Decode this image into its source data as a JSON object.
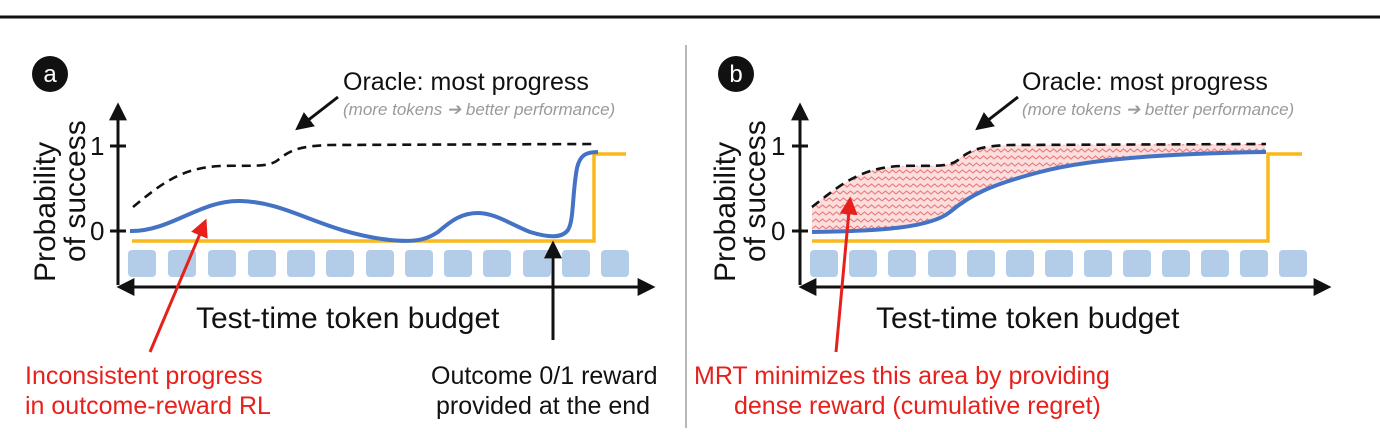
{
  "panel_a": {
    "badge": "a",
    "oracle_title": "Oracle: most progress",
    "oracle_subtitle": "(more tokens ➔ better performance)",
    "y_label_line1": "Probability",
    "y_label_line2": "of success",
    "tick_1": "1",
    "tick_0": "0",
    "x_label": "Test-time token budget",
    "red_caption_line1": "Inconsistent progress",
    "red_caption_line2": "in outcome-reward RL",
    "black_caption_line1": "Outcome 0/1 reward",
    "black_caption_line2": "provided at the end"
  },
  "panel_b": {
    "badge": "b",
    "oracle_title": "Oracle: most progress",
    "oracle_subtitle": "(more tokens ➔ better performance)",
    "y_label_line1": "Probability",
    "y_label_line2": "of success",
    "tick_1": "1",
    "tick_0": "0",
    "x_label": "Test-time token budget",
    "red_caption_line1": "MRT minimizes this area by providing",
    "red_caption_line2": "dense reward (cumulative regret)"
  },
  "colors": {
    "blue_curve": "#4472c4",
    "orange_step": "#f8b91c",
    "token_blocks": "#b3cde8",
    "red_text": "#e8201c",
    "area_fill": "#f7b6b6"
  }
}
